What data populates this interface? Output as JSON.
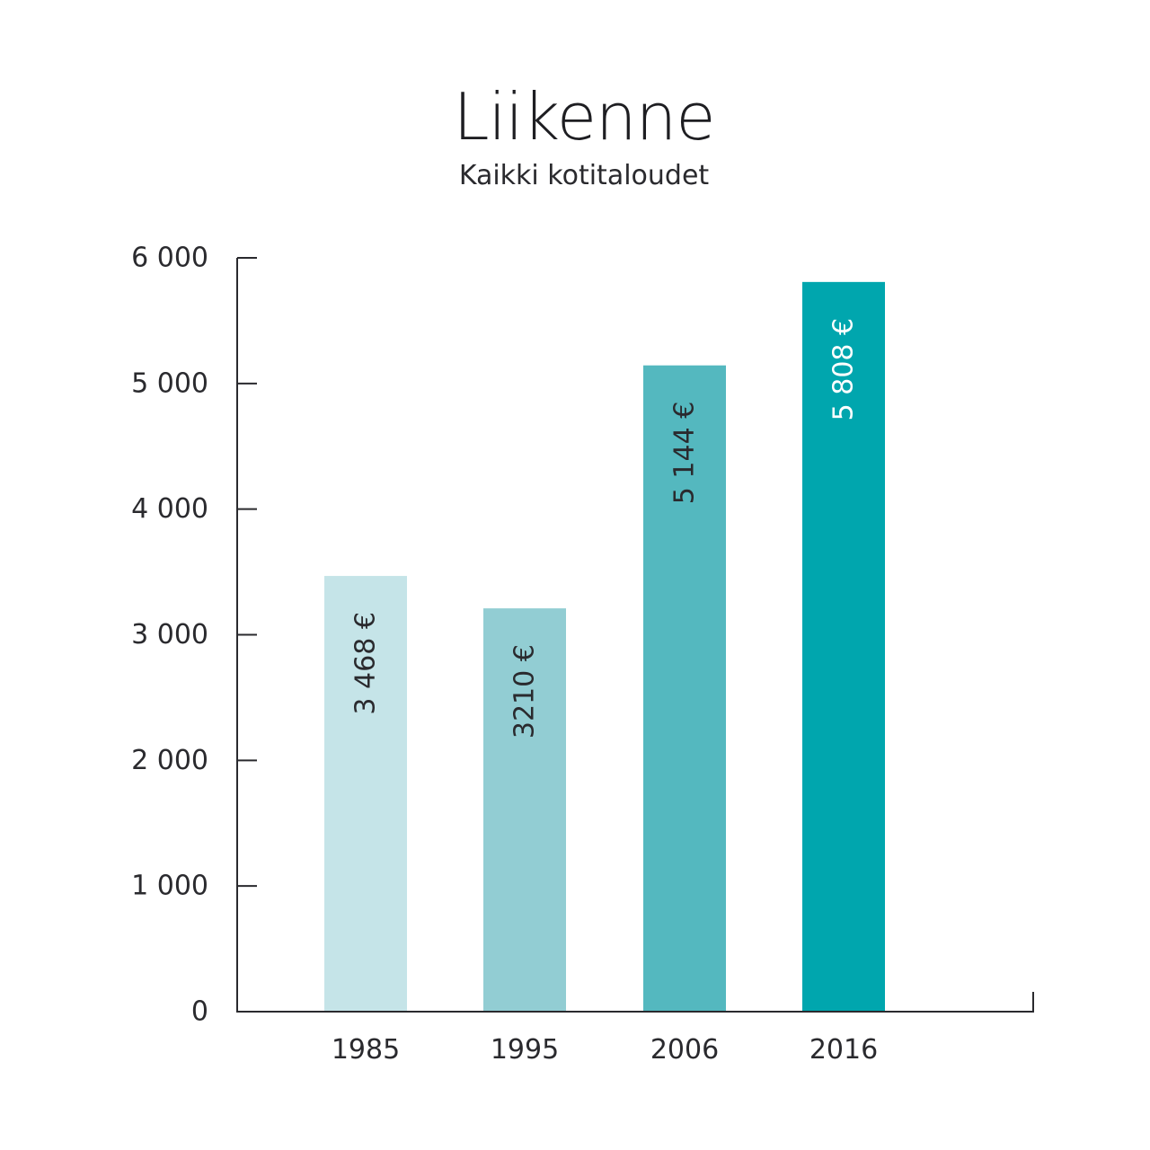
{
  "chart_data": {
    "type": "bar",
    "title": "Liikenne",
    "subtitle": "Kaikki kotitaloudet",
    "categories": [
      "1985",
      "1995",
      "2006",
      "2016"
    ],
    "values": [
      3468,
      3210,
      5144,
      5808
    ],
    "value_labels": [
      "3 468 €",
      "3210 €",
      "5 144 €",
      "5 808 €"
    ],
    "bar_colors": [
      "#c5e4e8",
      "#92cdd3",
      "#54b8bf",
      "#00a6ae"
    ],
    "label_colors": [
      "#2a2a2e",
      "#2a2a2e",
      "#2a2a2e",
      "#ffffff"
    ],
    "yticks": [
      0,
      1000,
      2000,
      3000,
      4000,
      5000,
      6000
    ],
    "ytick_labels": [
      "0",
      "1 000",
      "2 000",
      "3 000",
      "4 000",
      "5 000",
      "6 000"
    ],
    "ylim": [
      0,
      6000
    ],
    "xlabel": "",
    "ylabel": "",
    "grid": false,
    "legend": "none"
  }
}
